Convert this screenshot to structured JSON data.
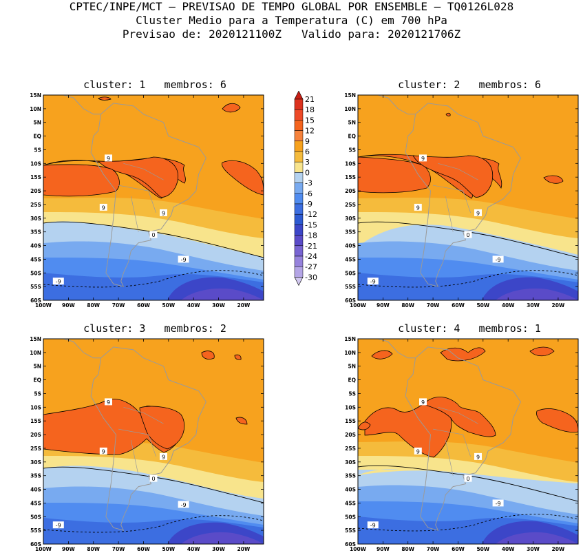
{
  "header": {
    "line1": "CPTEC/INPE/MCT – PREVISAO DE TEMPO GLOBAL POR ENSEMBLE – TQ0126L028",
    "line2": "Cluster Medio para a Temperatura (C) em 700 hPa",
    "line3": "Previsao de: 2020121100Z   Valido para: 2020121706Z"
  },
  "panels": [
    {
      "title": "cluster: 1   membros: 6"
    },
    {
      "title": "cluster: 2   membros: 6"
    },
    {
      "title": "cluster: 3   membros: 2"
    },
    {
      "title": "cluster: 4   membros: 1"
    }
  ],
  "lat_labels": [
    "15N",
    "10N",
    "5N",
    "EQ",
    "5S",
    "10S",
    "15S",
    "20S",
    "25S",
    "30S",
    "35S",
    "40S",
    "45S",
    "50S",
    "55S",
    "60S"
  ],
  "lon_labels": [
    "100W",
    "90W",
    "80W",
    "70W",
    "60W",
    "50W",
    "40W",
    "30W",
    "20W"
  ],
  "colorbar": {
    "labels": [
      "21",
      "18",
      "15",
      "12",
      "9",
      "6",
      "3",
      "0",
      "-3",
      "-6",
      "-9",
      "-12",
      "-15",
      "-18",
      "-21",
      "-24",
      "-27",
      "-30"
    ],
    "colors": [
      "#c81e14",
      "#dc321e",
      "#ee4a28",
      "#f5641e",
      "#f6823c",
      "#f7a21e",
      "#f5bb3c",
      "#f8e48c",
      "#b4d2f0",
      "#78aaf0",
      "#508cf0",
      "#3c6ee1",
      "#2d5ad2",
      "#3c46c8",
      "#5a4bc8",
      "#7864d2",
      "#9682dc",
      "#b4a5e6",
      "#d2c8f0"
    ]
  },
  "contour_labels": {
    "nine": "9",
    "zero": "0",
    "minus_nine": "-9"
  }
}
